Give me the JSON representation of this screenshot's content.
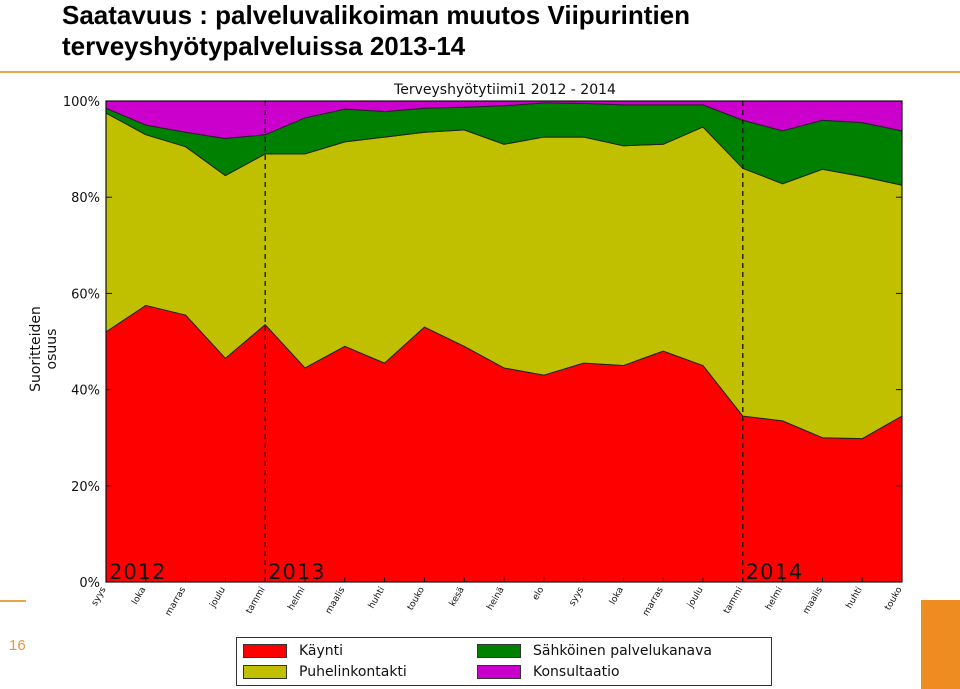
{
  "slide": {
    "title": "Saatavuus : palveluvalikoiman muutos Viipurintien terveyshyötypalveluissa 2013-14",
    "page_number": "16"
  },
  "chart_data": {
    "type": "area",
    "stacked": true,
    "title": "Terveyshyötytiimi1 2012 - 2014",
    "xlabel": "",
    "ylabel": "Suoritteiden osuus",
    "ylim": [
      0,
      100
    ],
    "yticks": [
      "0%",
      "20%",
      "40%",
      "60%",
      "80%",
      "100%"
    ],
    "grid": false,
    "legend_position": "bottom",
    "categories": [
      "syys",
      "loka",
      "marras",
      "joulu",
      "tammi",
      "helmi",
      "maalis",
      "huhti",
      "touko",
      "kesä",
      "heinä",
      "elo",
      "syys",
      "loka",
      "marras",
      "joulu",
      "tammi",
      "helmi",
      "maalis",
      "huhti",
      "touko"
    ],
    "year_markers": [
      {
        "label": "2012",
        "index": 0,
        "line": false
      },
      {
        "label": "2013",
        "index": 4,
        "line": true
      },
      {
        "label": "2014",
        "index": 16,
        "line": true
      }
    ],
    "series": [
      {
        "name": "Käynti",
        "color": "#ff0000",
        "values": [
          52,
          57.5,
          55.5,
          46.5,
          53.5,
          44.5,
          49,
          45.5,
          53,
          49,
          44.5,
          43,
          45.5,
          45,
          48,
          45,
          34.5,
          33.5,
          30,
          29.8,
          34.5
        ]
      },
      {
        "name": "Puhelinkontakti",
        "color": "#c0c000",
        "values": [
          45.5,
          35.5,
          35,
          38,
          35.5,
          44.5,
          42.5,
          47,
          40.5,
          45,
          46.5,
          49.5,
          47,
          45.7,
          43,
          49.6,
          51.5,
          49.3,
          55.8,
          54.5,
          48
        ]
      },
      {
        "name": "Sähköinen palvelukanava",
        "color": "#008000",
        "values": [
          1,
          2,
          3,
          7.7,
          4,
          7.5,
          6.8,
          5.3,
          5,
          4.7,
          8,
          7.1,
          7,
          8.5,
          8.2,
          4.6,
          10,
          11,
          10.2,
          11.2,
          11.3
        ]
      },
      {
        "name": "Konsultaatio",
        "color": "#cc00cc",
        "values": [
          1.5,
          5,
          6.5,
          7.8,
          7,
          3.5,
          1.7,
          2.2,
          1.5,
          1.3,
          1,
          0.4,
          0.5,
          0.8,
          0.8,
          0.8,
          4,
          6.2,
          4,
          4.5,
          6.2
        ]
      }
    ]
  }
}
